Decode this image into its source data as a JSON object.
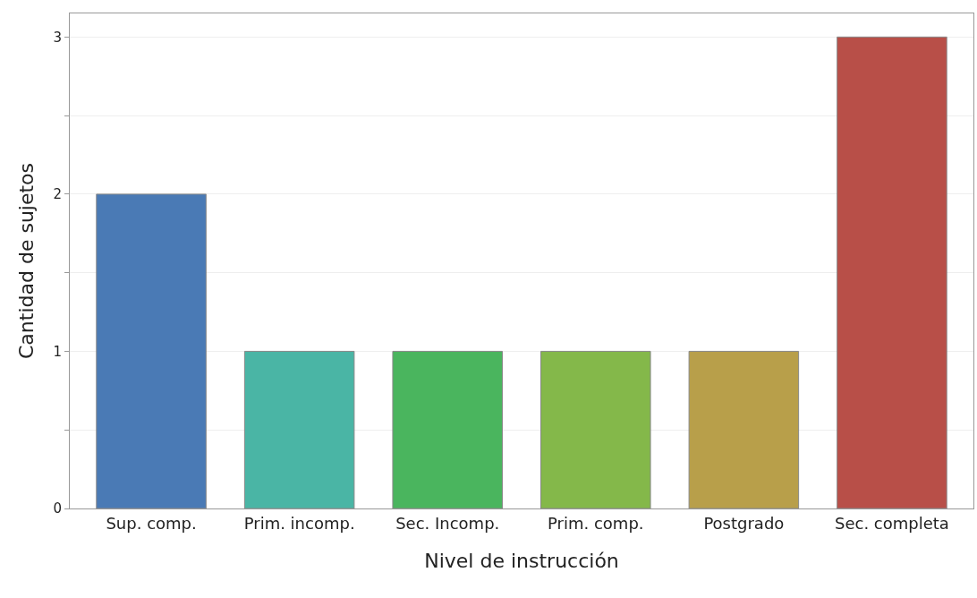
{
  "chart_data": {
    "type": "bar",
    "xlabel": "Nivel de instrucción",
    "ylabel": "Cantidad de sujetos",
    "categories": [
      "Sup. comp.",
      "Prim. incomp.",
      "Sec. Incomp.",
      "Prim. comp.",
      "Postgrado",
      "Sec. completa"
    ],
    "values": [
      2,
      1,
      1,
      1,
      1,
      3
    ],
    "colors": [
      "#4a7ab5",
      "#4ab5a5",
      "#4ab55e",
      "#84b84a",
      "#b89f4a",
      "#b84f48"
    ],
    "ylim": [
      0,
      3.15
    ],
    "yticks": [
      0,
      {
        "value": 0.5,
        "label": null
      },
      1,
      {
        "value": 1.5,
        "label": null
      },
      2,
      {
        "value": 2.5,
        "label": null
      },
      3
    ],
    "grid": "y"
  }
}
